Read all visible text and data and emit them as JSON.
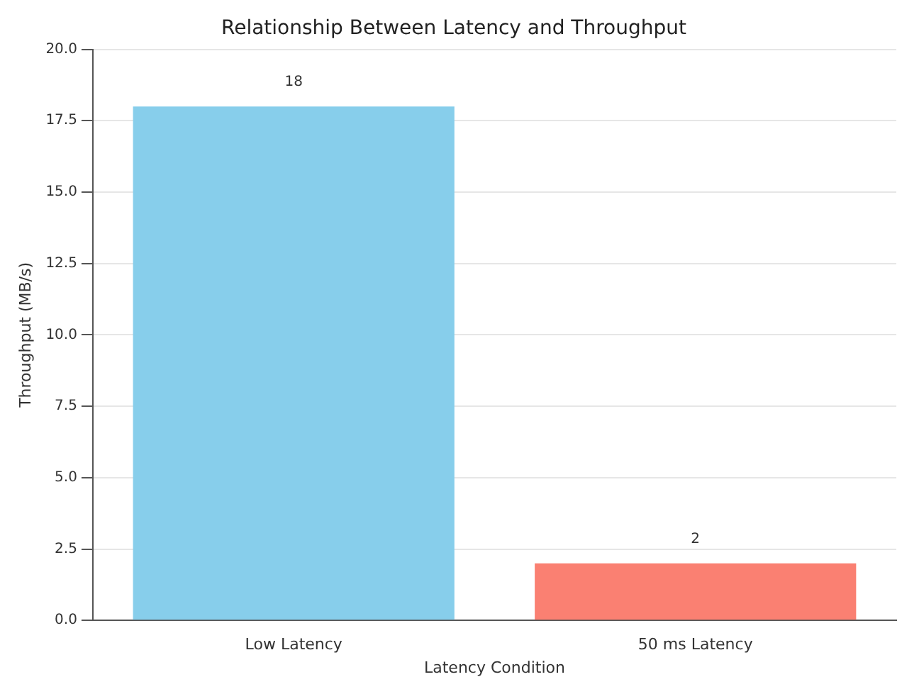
{
  "chart_data": {
    "type": "bar",
    "title": "Relationship Between Latency and Throughput",
    "xlabel": "Latency Condition",
    "ylabel": "Throughput (MB/s)",
    "categories": [
      "Low Latency",
      "50 ms Latency"
    ],
    "values": [
      18,
      2
    ],
    "colors": [
      "#87ceeb",
      "#fa8072"
    ],
    "ylim": [
      0,
      20
    ],
    "yticks": [
      {
        "value": 0,
        "label": "0.0"
      },
      {
        "value": 2.5,
        "label": "2.5"
      },
      {
        "value": 5,
        "label": "5.0"
      },
      {
        "value": 7.5,
        "label": "7.5"
      },
      {
        "value": 10,
        "label": "10.0"
      },
      {
        "value": 12.5,
        "label": "12.5"
      },
      {
        "value": 15,
        "label": "15.0"
      },
      {
        "value": 17.5,
        "label": "17.5"
      },
      {
        "value": 20,
        "label": "20.0"
      }
    ],
    "grid": "y",
    "data_labels": true
  }
}
